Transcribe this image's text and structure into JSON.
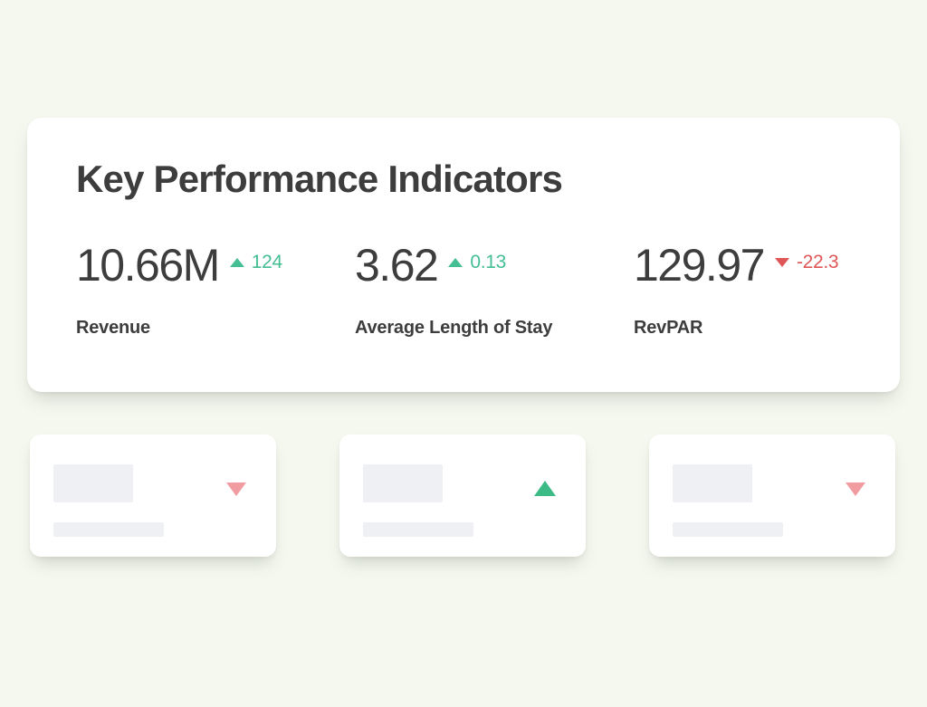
{
  "kpi_card": {
    "title": "Key Performance Indicators",
    "metrics": [
      {
        "value": "10.66M",
        "delta": "124",
        "direction": "up",
        "label": "Revenue"
      },
      {
        "value": "3.62",
        "delta": "0.13",
        "direction": "up",
        "label": "Average Length of Stay"
      },
      {
        "value": "129.97",
        "delta": "-22.3",
        "direction": "down",
        "label": "RevPAR"
      }
    ]
  },
  "placeholder_cards": [
    {
      "trend": "down"
    },
    {
      "trend": "up"
    },
    {
      "trend": "down"
    }
  ],
  "colors": {
    "background": "#f5f8ef",
    "card": "#ffffff",
    "text": "#3d3d3d",
    "positive": "#44be92",
    "negative": "#e05656",
    "placeholder_positive": "#3cbb86",
    "placeholder_negative": "#f19ca0",
    "skeleton": "#eef0f4"
  }
}
